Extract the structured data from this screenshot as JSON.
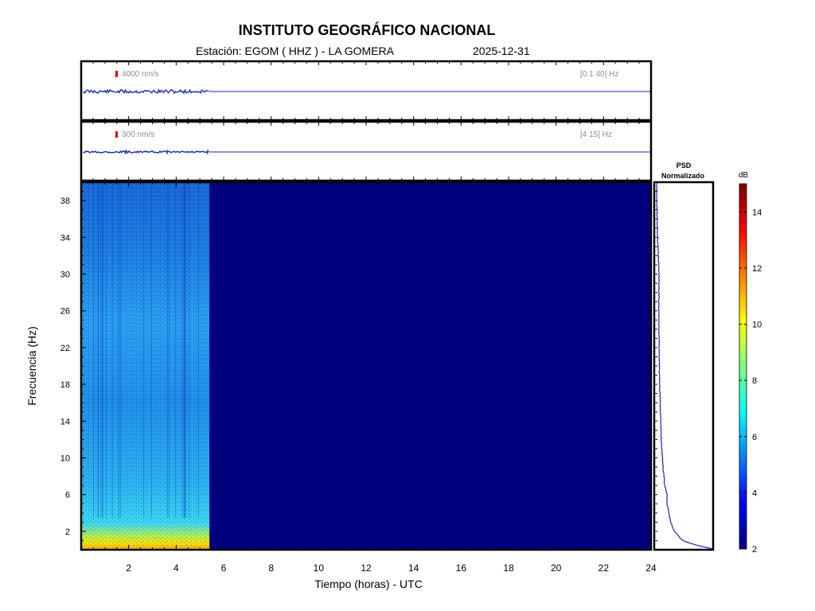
{
  "header": {
    "institution": "INSTITUTO GEOGRÁFICO NACIONAL",
    "station_label": "Estación:  EGOM ( HHZ ) - LA GOMERA",
    "date": "2025-12-31"
  },
  "colors": {
    "trace": "#1a2aa8",
    "panel_bg": "#00007f",
    "scale_marker": "#dd0000",
    "annotation": "#8c8c8c"
  },
  "chart_data": [
    {
      "type": "line",
      "panel": "broadband-trace",
      "scale_label": "4000 nm/s",
      "filter_label": "[0.1 40] Hz",
      "x_range": [
        0,
        24
      ],
      "data_end_hour": 5.4
    },
    {
      "type": "line",
      "panel": "filtered-trace",
      "scale_label": "300 nm/s",
      "filter_label": "[4 15] Hz",
      "x_range": [
        0,
        24
      ],
      "data_end_hour": 5.4
    },
    {
      "type": "heatmap",
      "panel": "spectrogram",
      "xlabel": "Tiempo (horas) - UTC",
      "ylabel": "Frecuencia  (Hz)",
      "x_ticks": [
        2,
        4,
        6,
        8,
        10,
        12,
        14,
        16,
        18,
        20,
        22,
        24
      ],
      "y_ticks": [
        2,
        6,
        10,
        14,
        18,
        22,
        26,
        30,
        34,
        38
      ],
      "x_range": [
        0,
        24
      ],
      "y_range": [
        0,
        40
      ],
      "data_end_hour": 5.4,
      "colormap": "jet"
    },
    {
      "type": "line",
      "panel": "psd",
      "title": "PSD\nNormalizado",
      "title_line1": "PSD",
      "title_line2": "Normalizado",
      "y_range": [
        0,
        40
      ],
      "profile": [
        {
          "f": 0.1,
          "v": 1.0
        },
        {
          "f": 0.5,
          "v": 0.72
        },
        {
          "f": 1,
          "v": 0.48
        },
        {
          "f": 2,
          "v": 0.34
        },
        {
          "f": 3,
          "v": 0.27
        },
        {
          "f": 5,
          "v": 0.21
        },
        {
          "f": 6,
          "v": 0.21
        },
        {
          "f": 7,
          "v": 0.17
        },
        {
          "f": 9,
          "v": 0.14
        },
        {
          "f": 12,
          "v": 0.11
        },
        {
          "f": 14,
          "v": 0.1
        },
        {
          "f": 18,
          "v": 0.08
        },
        {
          "f": 22,
          "v": 0.07
        },
        {
          "f": 26,
          "v": 0.065
        },
        {
          "f": 30,
          "v": 0.07
        },
        {
          "f": 34,
          "v": 0.045
        },
        {
          "f": 38,
          "v": 0.03
        },
        {
          "f": 40,
          "v": 0.03
        }
      ]
    },
    {
      "type": "heatmap",
      "panel": "colorbar",
      "label": "dB",
      "ticks": [
        2,
        4,
        6,
        8,
        10,
        12,
        14
      ],
      "range": [
        2,
        15
      ]
    }
  ]
}
